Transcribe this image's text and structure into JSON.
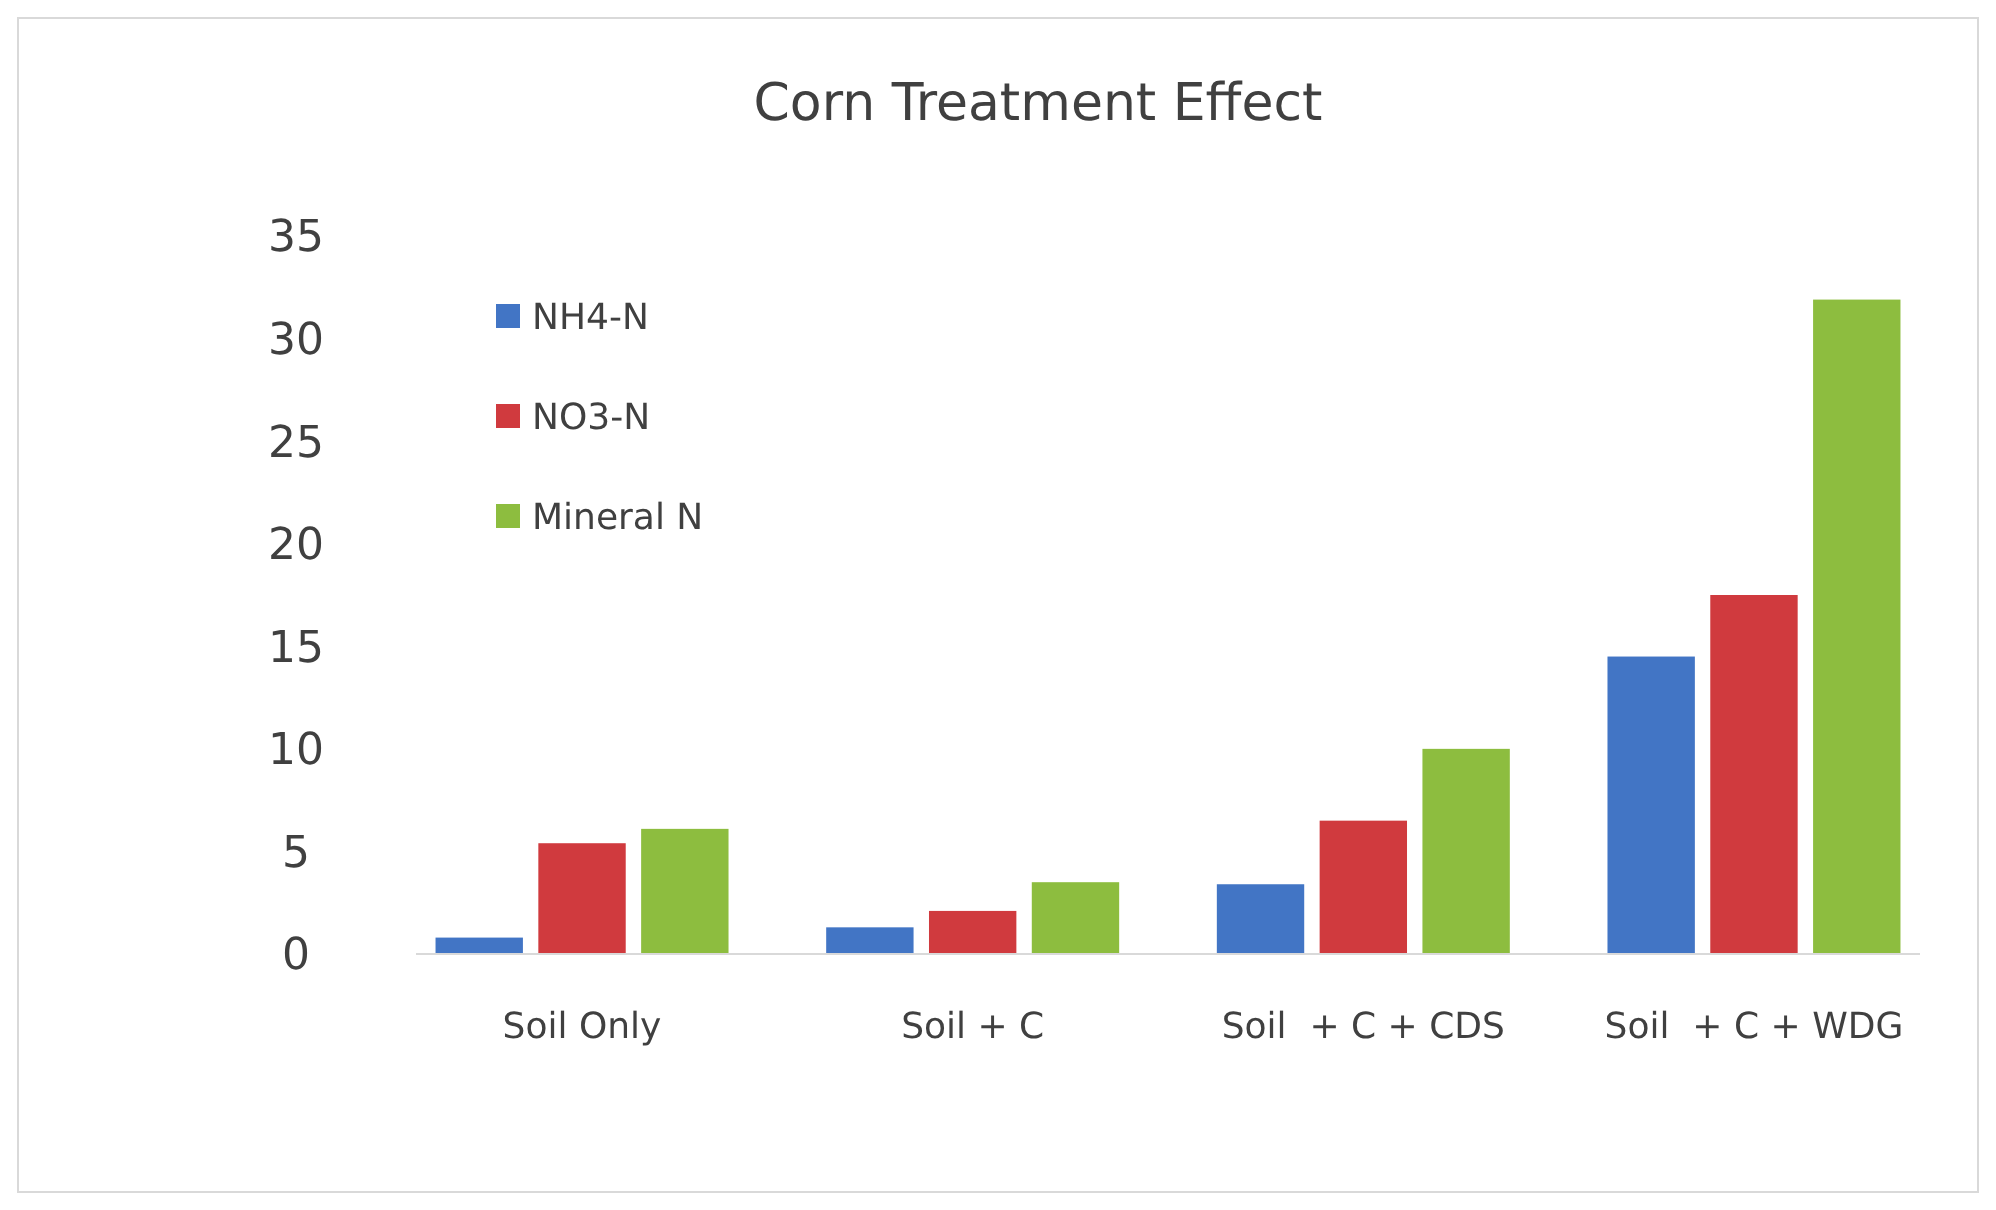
{
  "chart_data": {
    "type": "bar",
    "title": "Corn Treatment Effect",
    "categories": [
      "Soil Only",
      "Soil + C",
      "Soil  + C + CDS",
      "Soil  + C + WDG"
    ],
    "series": [
      {
        "name": "NH4-N",
        "color": "#4275c5",
        "values": [
          0.8,
          1.3,
          3.4,
          14.5
        ]
      },
      {
        "name": "NO3-N",
        "color": "#d03a3e",
        "values": [
          5.4,
          2.1,
          6.5,
          17.5
        ]
      },
      {
        "name": "Mineral N",
        "color": "#8dbd3f",
        "values": [
          6.1,
          3.5,
          10.0,
          31.9
        ]
      }
    ],
    "ylim": [
      0,
      35
    ],
    "yticks": [
      0,
      5,
      10,
      15,
      20,
      25,
      30,
      35
    ],
    "grid": false,
    "legend": "top left"
  }
}
